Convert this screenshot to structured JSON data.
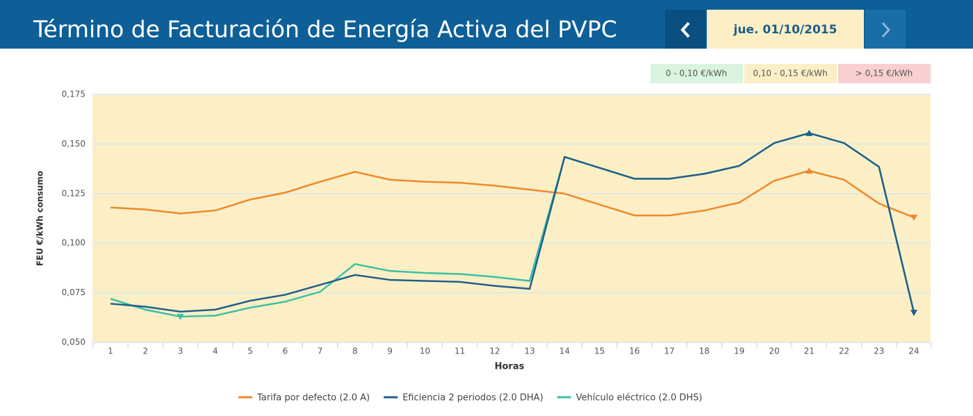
{
  "header": {
    "title": "Término de Facturación de Energía Activa del PVPC",
    "date": "jue. 01/10/2015"
  },
  "price_bands": [
    "0 - 0,10 €/kWh",
    "0,10 - 0,15 €/kWh",
    "> 0,15 €/kWh"
  ],
  "chart_data": {
    "type": "line",
    "x_label": "Horas",
    "y_label": "FEU €/kWh consumo",
    "categories": [
      "1",
      "2",
      "3",
      "4",
      "5",
      "6",
      "7",
      "8",
      "9",
      "10",
      "11",
      "12",
      "13",
      "14",
      "15",
      "16",
      "17",
      "18",
      "19",
      "20",
      "21",
      "22",
      "23",
      "24"
    ],
    "ylim": [
      0.05,
      0.175
    ],
    "yticks": [
      {
        "value": 0.05,
        "label": "0,050"
      },
      {
        "value": 0.075,
        "label": "0,075"
      },
      {
        "value": 0.1,
        "label": "0,100"
      },
      {
        "value": 0.125,
        "label": "0,125"
      },
      {
        "value": 0.15,
        "label": "0,150"
      },
      {
        "value": 0.175,
        "label": "0,175"
      }
    ],
    "grid": true,
    "series": [
      {
        "name": "Tarifa por defecto (2.0 A)",
        "color": "#f0882a",
        "values": [
          0.118,
          0.117,
          0.115,
          0.1165,
          0.122,
          0.1255,
          0.131,
          0.136,
          0.132,
          0.131,
          0.1305,
          0.129,
          0.127,
          0.125,
          0.1195,
          0.114,
          0.114,
          0.1165,
          0.1205,
          0.1315,
          0.1365,
          0.132,
          0.12,
          0.113
        ]
      },
      {
        "name": "Vehículo eléctrico (2.0 DHS)",
        "color": "#3cbfa5",
        "values": [
          0.072,
          0.0665,
          0.063,
          0.0635,
          0.0675,
          0.0705,
          0.0755,
          0.0895,
          0.086,
          0.085,
          0.0845,
          0.083,
          0.081,
          0.1435,
          0.138,
          0.1325,
          0.1325,
          0.135,
          0.139,
          0.1505,
          0.1555,
          0.1505,
          0.1385,
          0.065
        ]
      },
      {
        "name": "Eficiencia 2 periodos (2.0 DHA)",
        "color": "#1f5f8b",
        "values": [
          0.0695,
          0.068,
          0.0655,
          0.0665,
          0.071,
          0.074,
          0.079,
          0.084,
          0.0815,
          0.081,
          0.0805,
          0.0785,
          0.077,
          0.1435,
          0.138,
          0.1325,
          0.1325,
          0.135,
          0.139,
          0.1505,
          0.1555,
          0.1505,
          0.1385,
          0.065
        ]
      }
    ]
  }
}
